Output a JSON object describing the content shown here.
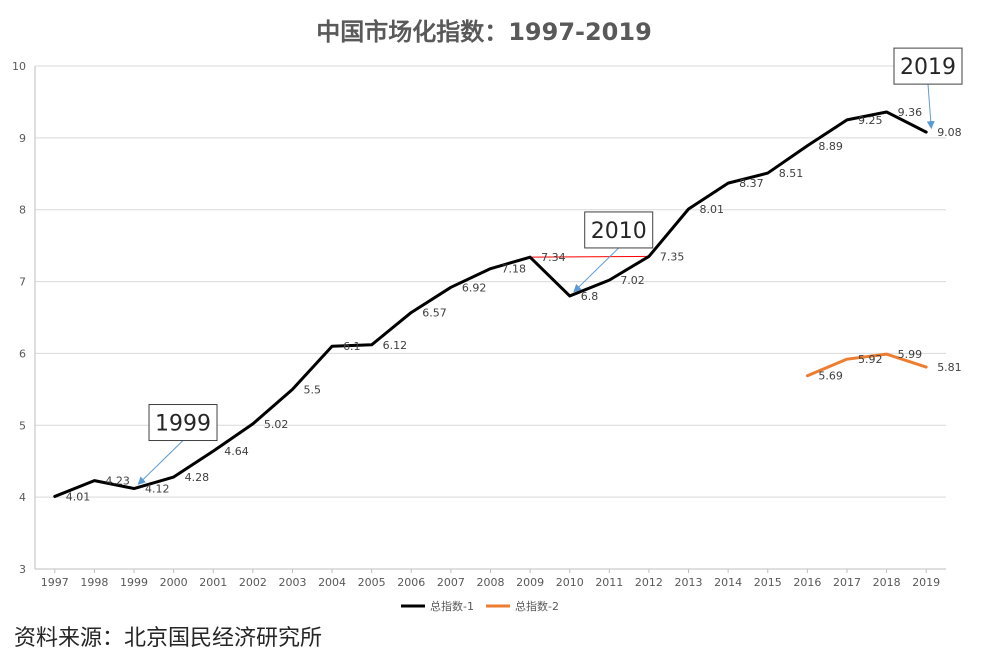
{
  "source_text": "资料来源：北京国民经济研究所",
  "chart_data": {
    "type": "line",
    "title": "中国市场化指数：1997-2019",
    "xlabel": "",
    "ylabel": "",
    "ylim": [
      3,
      10
    ],
    "yticks": [
      3,
      4,
      5,
      6,
      7,
      8,
      9,
      10
    ],
    "grid": true,
    "legend_position": "bottom",
    "x": [
      "1997",
      "1998",
      "1999",
      "2000",
      "2001",
      "2002",
      "2003",
      "2004",
      "2005",
      "2006",
      "2007",
      "2008",
      "2009",
      "2010",
      "2011",
      "2012",
      "2013",
      "2014",
      "2015",
      "2016",
      "2017",
      "2018",
      "2019"
    ],
    "series": [
      {
        "name": "总指数-1",
        "color": "#000000",
        "values": [
          4.01,
          4.23,
          4.12,
          4.28,
          4.64,
          5.02,
          5.5,
          6.1,
          6.12,
          6.57,
          6.92,
          7.18,
          7.34,
          6.8,
          7.02,
          7.35,
          8.01,
          8.37,
          8.51,
          8.89,
          9.25,
          9.36,
          9.08
        ],
        "labels": [
          "4.01",
          "4.23",
          "4.12",
          "4.28",
          "4.64",
          "5.02",
          "5.5",
          "6.1",
          "6.12",
          "6.57",
          "6.92",
          "7.18",
          "7.34",
          "6.8",
          "7.02",
          "7.35",
          "8.01",
          "8.37",
          "8.51",
          "8.89",
          "9.25",
          "9.36",
          "9.08"
        ]
      },
      {
        "name": "总指数-2",
        "color": "#ED7D31",
        "values": [
          null,
          null,
          null,
          null,
          null,
          null,
          null,
          null,
          null,
          null,
          null,
          null,
          null,
          null,
          null,
          null,
          null,
          null,
          null,
          5.69,
          5.92,
          5.99,
          5.81
        ],
        "labels": [
          null,
          null,
          null,
          null,
          null,
          null,
          null,
          null,
          null,
          null,
          null,
          null,
          null,
          null,
          null,
          null,
          null,
          null,
          null,
          "5.69",
          "5.92",
          "5.99",
          "5.81"
        ]
      }
    ],
    "reference_line": {
      "color": "#FF0000",
      "from": [
        "2009",
        7.34
      ],
      "to": [
        "2012",
        7.35
      ]
    },
    "callouts": [
      {
        "text": "1999",
        "target_x": "1999",
        "target_y": 4.12
      },
      {
        "text": "2010",
        "target_x": "2010",
        "target_y": 6.8
      },
      {
        "text": "2019",
        "target_x": "2019",
        "target_y": 9.08
      }
    ]
  }
}
